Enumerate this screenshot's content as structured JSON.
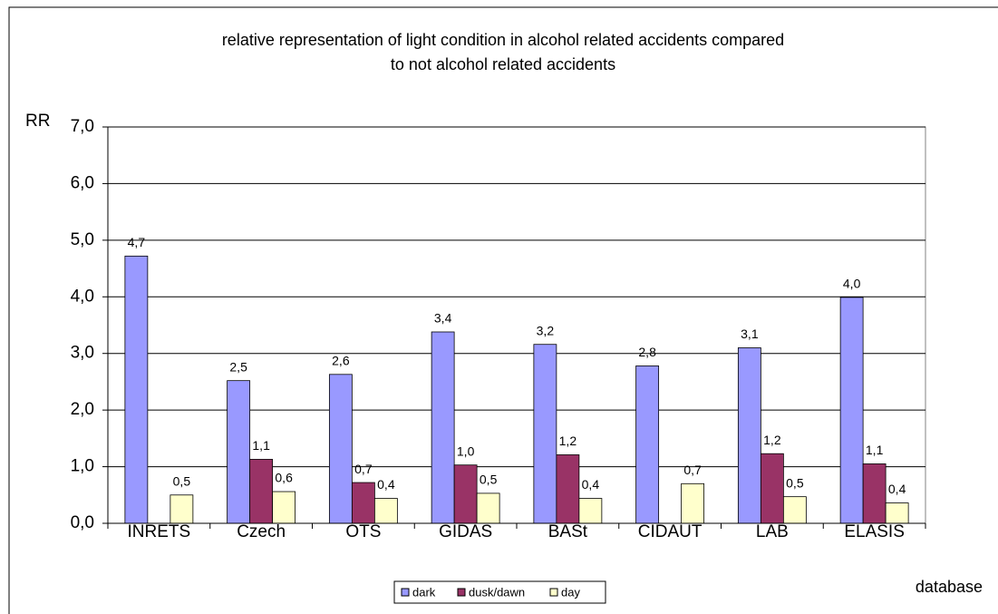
{
  "chart_data": {
    "type": "bar",
    "title": "relative representation of light condition in alcohol related accidents compared",
    "subtitle": "to not alcohol related accidents",
    "y_label": "RR",
    "x_label": "database",
    "categories": [
      "INRETS",
      "Czech",
      "OTS",
      "GIDAS",
      "BASt",
      "CIDAUT",
      "LAB",
      "ELASIS"
    ],
    "series": [
      {
        "name": "dark",
        "color": "#9999ff",
        "values": [
          4.72,
          2.52,
          2.63,
          3.38,
          3.16,
          2.78,
          3.1,
          3.99
        ],
        "value_labels": [
          "4,7",
          "2,5",
          "2,6",
          "3,4",
          "3,2",
          "2,8",
          "3,1",
          "4,0"
        ]
      },
      {
        "name": "dusk/dawn",
        "color": "#993366",
        "values": [
          null,
          1.13,
          0.72,
          1.03,
          1.21,
          null,
          1.23,
          1.05
        ],
        "value_labels": [
          null,
          "1,1",
          "0,7",
          "1,0",
          "1,2",
          null,
          "1,2",
          "1,1"
        ]
      },
      {
        "name": "day",
        "color": "#ffffcc",
        "values": [
          0.5,
          0.56,
          0.44,
          0.53,
          0.44,
          0.7,
          0.47,
          0.36
        ],
        "value_labels": [
          "0,5",
          "0,6",
          "0,4",
          "0,5",
          "0,4",
          "0,7",
          "0,5",
          "0,4"
        ]
      }
    ],
    "ylim": [
      0,
      7
    ],
    "yticks": [
      {
        "value": 0,
        "label": "0,0"
      },
      {
        "value": 1,
        "label": "1,0"
      },
      {
        "value": 2,
        "label": "2,0"
      },
      {
        "value": 3,
        "label": "3,0"
      },
      {
        "value": 4,
        "label": "4,0"
      },
      {
        "value": 5,
        "label": "5,0"
      },
      {
        "value": 6,
        "label": "6,0"
      },
      {
        "value": 7,
        "label": "7,0"
      }
    ],
    "grid": true,
    "legend": "bottom"
  }
}
